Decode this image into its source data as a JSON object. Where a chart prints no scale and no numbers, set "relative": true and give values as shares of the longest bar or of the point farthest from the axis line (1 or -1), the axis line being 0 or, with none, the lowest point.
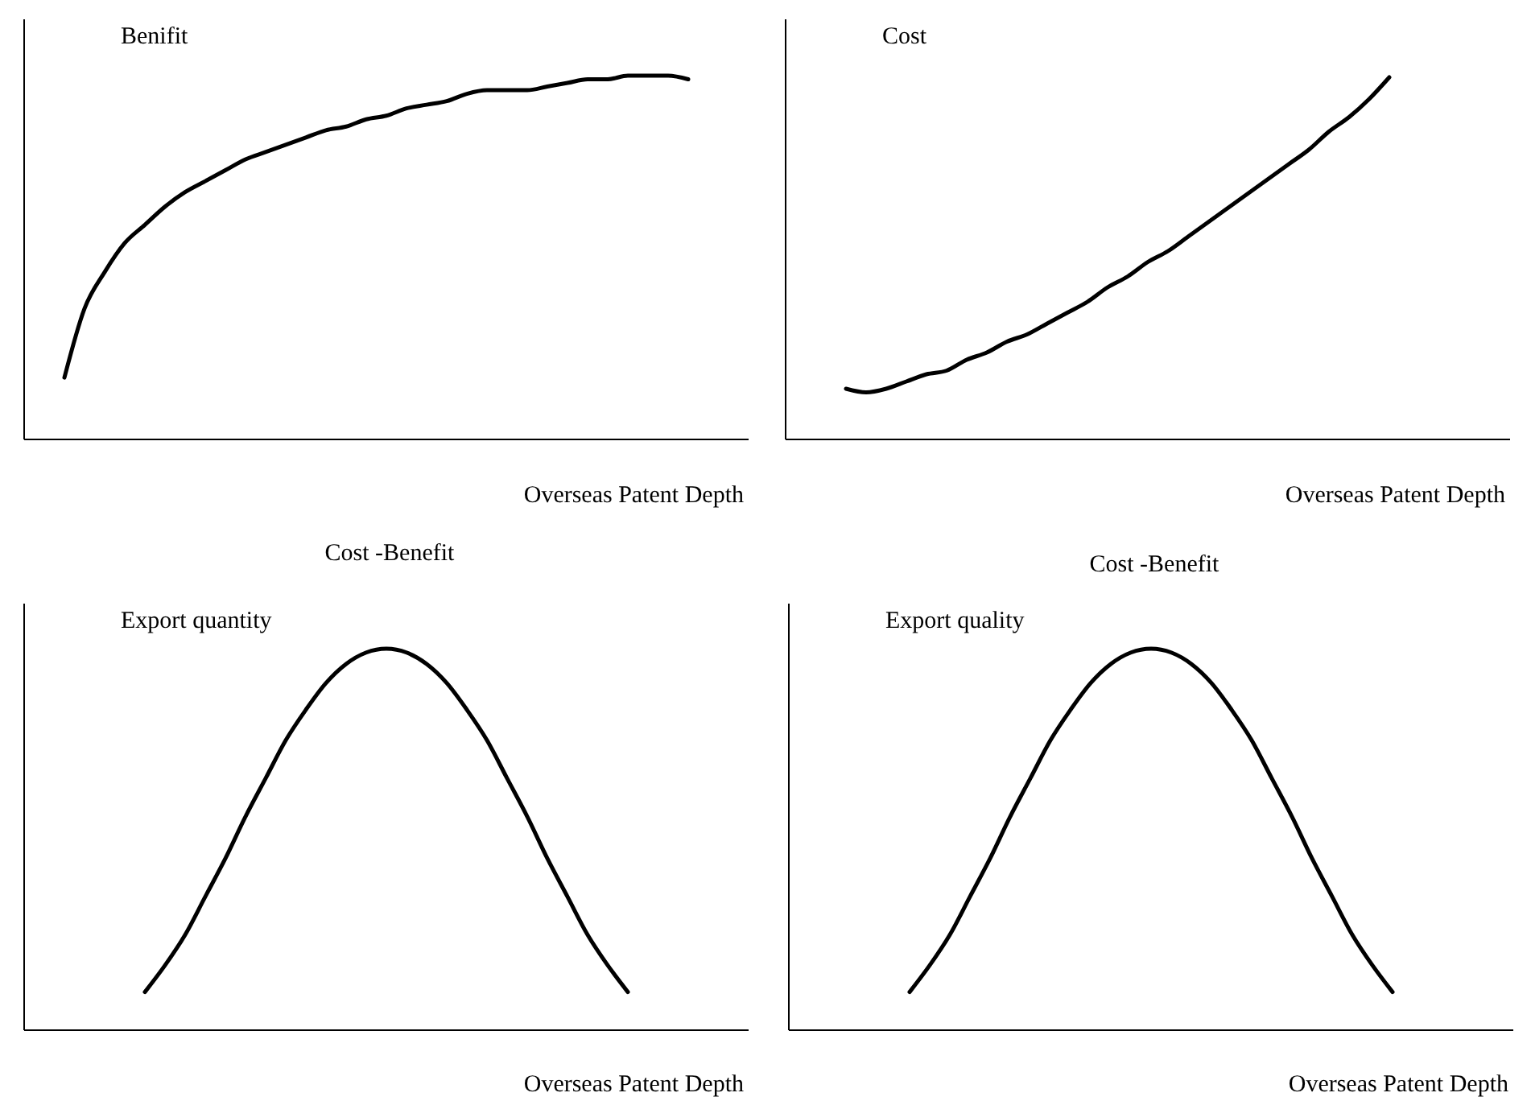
{
  "chart_data": [
    {
      "type": "line",
      "relative": true,
      "ylabel": "Benifit",
      "xlabel": "Overseas Patent Depth",
      "marker": "none",
      "categories": [
        null,
        null,
        null,
        null,
        null,
        null,
        null,
        null,
        null,
        null,
        null,
        null,
        null,
        null,
        null,
        null,
        null,
        null,
        null,
        null,
        null,
        null,
        null,
        null,
        null,
        null,
        null,
        null,
        null,
        null,
        null,
        null,
        null,
        null,
        null,
        null,
        null
      ],
      "series": [
        {
          "color": "#000000",
          "values": [
            null,
            null,
            0.17,
            0.36,
            0.46,
            0.54,
            0.59,
            0.64,
            0.68,
            0.71,
            0.74,
            0.77,
            0.79,
            0.81,
            0.83,
            0.85,
            0.86,
            0.88,
            0.89,
            0.91,
            0.92,
            0.93,
            0.95,
            0.96,
            0.96,
            0.96,
            0.97,
            0.98,
            0.99,
            0.99,
            1,
            1,
            1,
            0.99,
            null,
            null,
            null
          ]
        }
      ]
    },
    {
      "type": "line",
      "relative": true,
      "ylabel": "Cost",
      "xlabel": "Overseas Patent Depth",
      "marker": "none",
      "categories": [
        null,
        null,
        null,
        null,
        null,
        null,
        null,
        null,
        null,
        null,
        null,
        null,
        null,
        null,
        null,
        null,
        null,
        null,
        null,
        null,
        null,
        null,
        null,
        null,
        null,
        null,
        null,
        null,
        null,
        null,
        null,
        null,
        null,
        null,
        null,
        null,
        null
      ],
      "series": [
        {
          "color": "#000000",
          "values": [
            null,
            null,
            null,
            0.14,
            0.13,
            0.14,
            0.16,
            0.18,
            0.19,
            0.22,
            0.24,
            0.27,
            0.29,
            0.32,
            0.35,
            0.38,
            0.42,
            0.45,
            0.49,
            0.52,
            0.56,
            0.6,
            0.64,
            0.68,
            0.72,
            0.76,
            0.8,
            0.85,
            0.89,
            0.94,
            1,
            null,
            null,
            null,
            null,
            null,
            null
          ]
        }
      ]
    },
    {
      "type": "line",
      "relative": true,
      "title": "Cost -Benefit",
      "ylabel": "Export quantity",
      "xlabel": "Overseas Patent Depth",
      "marker": "none",
      "categories": [
        null,
        null,
        null,
        null,
        null,
        null,
        null,
        null,
        null,
        null,
        null,
        null,
        null,
        null,
        null,
        null,
        null,
        null,
        null,
        null,
        null,
        null,
        null,
        null,
        null,
        null,
        null,
        null,
        null,
        null,
        null,
        null,
        null,
        null,
        null,
        null,
        null
      ],
      "series": [
        {
          "color": "#000000",
          "values": [
            null,
            null,
            null,
            null,
            null,
            null,
            0.1,
            0.17,
            0.25,
            0.35,
            0.45,
            0.56,
            0.66,
            0.76,
            0.84,
            0.91,
            0.96,
            0.99,
            1,
            0.99,
            0.96,
            0.91,
            0.84,
            0.76,
            0.66,
            0.56,
            0.45,
            0.35,
            0.25,
            0.17,
            0.1,
            null,
            null,
            null,
            null,
            null,
            null
          ]
        }
      ]
    },
    {
      "type": "line",
      "relative": true,
      "title": "Cost -Benefit",
      "ylabel": "Export quality",
      "xlabel": "Overseas Patent Depth",
      "marker": "none",
      "categories": [
        null,
        null,
        null,
        null,
        null,
        null,
        null,
        null,
        null,
        null,
        null,
        null,
        null,
        null,
        null,
        null,
        null,
        null,
        null,
        null,
        null,
        null,
        null,
        null,
        null,
        null,
        null,
        null,
        null,
        null,
        null,
        null,
        null,
        null,
        null,
        null,
        null
      ],
      "series": [
        {
          "color": "#000000",
          "values": [
            null,
            null,
            null,
            null,
            null,
            null,
            0.1,
            0.17,
            0.25,
            0.35,
            0.45,
            0.56,
            0.66,
            0.76,
            0.84,
            0.91,
            0.96,
            0.99,
            1,
            0.99,
            0.96,
            0.91,
            0.84,
            0.76,
            0.66,
            0.56,
            0.45,
            0.35,
            0.25,
            0.17,
            0.1,
            null,
            null,
            null,
            null,
            null,
            null
          ]
        }
      ]
    }
  ]
}
